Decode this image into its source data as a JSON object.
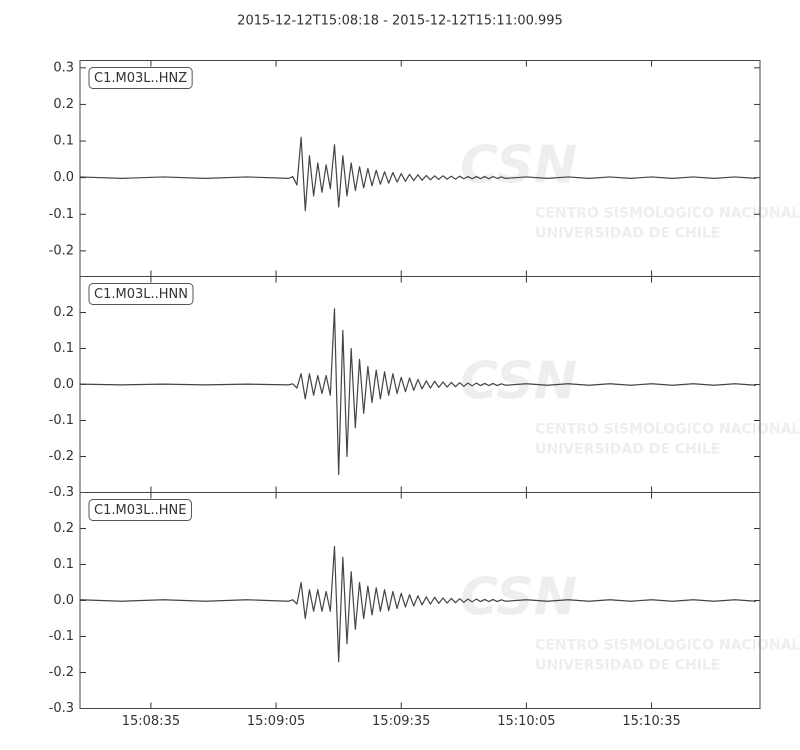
{
  "chart_data": [
    {
      "type": "line",
      "title": "2015-12-12T15:08:18  -  2015-12-12T15:11:00.995",
      "label": "C1.M03L..HNZ",
      "watermark": {
        "logo": "CSN",
        "lines": [
          "CENTRO SISMOLOGICO NACIONAL",
          "UNIVERSIDAD DE CHILE"
        ]
      },
      "xlim": [
        54498,
        54660.995
      ],
      "ylim": [
        -0.27,
        0.32
      ],
      "yticks": [
        -0.2,
        -0.1,
        {
          "value": 0,
          "label": "0.0"
        },
        0.1,
        0.2,
        0.3
      ],
      "x": [
        54498,
        54508,
        54518,
        54528,
        54538,
        54548,
        54549,
        54550,
        54551,
        54552,
        54553,
        54554,
        54555,
        54556,
        54557,
        54558,
        54559,
        54560,
        54561,
        54562,
        54563,
        54564,
        54565,
        54566,
        54567,
        54568,
        54569,
        54570,
        54571,
        54572,
        54573,
        54574,
        54575,
        54576,
        54577,
        54578,
        54579,
        54580,
        54581,
        54582,
        54583,
        54584,
        54585,
        54586,
        54587,
        54588,
        54589,
        54590,
        54591,
        54592,
        54593,
        54594,
        54595,
        54596,
        54597,
        54598,
        54599,
        54600,
        54605,
        54610,
        54615,
        54620,
        54625,
        54630,
        54635,
        54640,
        54645,
        54650,
        54655,
        54660
      ],
      "color": "#444444",
      "values": [
        0.002,
        -0.002,
        0.002,
        -0.002,
        0.002,
        -0.002,
        0.003,
        -0.02,
        0.11,
        -0.09,
        0.06,
        -0.05,
        0.04,
        -0.04,
        0.035,
        -0.03,
        0.09,
        -0.08,
        0.06,
        -0.05,
        0.04,
        -0.035,
        0.03,
        -0.028,
        0.025,
        -0.022,
        0.02,
        -0.018,
        0.016,
        -0.015,
        0.014,
        -0.012,
        0.011,
        -0.01,
        0.009,
        -0.008,
        0.008,
        -0.007,
        0.006,
        -0.006,
        0.005,
        -0.005,
        0.005,
        -0.004,
        0.004,
        -0.004,
        0.004,
        -0.003,
        0.003,
        -0.003,
        0.003,
        -0.003,
        0.003,
        -0.003,
        0.003,
        -0.002,
        0.002,
        -0.002,
        0.002,
        -0.002,
        0.002,
        -0.002,
        0.002,
        -0.002,
        0.002,
        -0.002,
        0.002,
        -0.002,
        0.002,
        -0.002
      ]
    },
    {
      "type": "line",
      "label": "C1.M03L..HNN",
      "watermark": {
        "logo": "CSN",
        "lines": [
          "CENTRO SISMOLOGICO NACIONAL",
          "UNIVERSIDAD DE CHILE"
        ]
      },
      "xlim": [
        54498,
        54660.995
      ],
      "ylim": [
        -0.3,
        0.3
      ],
      "yticks": [
        -0.3,
        -0.2,
        -0.1,
        {
          "value": 0,
          "label": "0.0"
        },
        0.1,
        0.2
      ],
      "x": [
        54498,
        54508,
        54518,
        54528,
        54538,
        54548,
        54549,
        54550,
        54551,
        54552,
        54553,
        54554,
        54555,
        54556,
        54557,
        54558,
        54559,
        54560,
        54561,
        54562,
        54563,
        54564,
        54565,
        54566,
        54567,
        54568,
        54569,
        54570,
        54571,
        54572,
        54573,
        54574,
        54575,
        54576,
        54577,
        54578,
        54579,
        54580,
        54581,
        54582,
        54583,
        54584,
        54585,
        54586,
        54587,
        54588,
        54589,
        54590,
        54591,
        54592,
        54593,
        54594,
        54595,
        54596,
        54597,
        54598,
        54599,
        54600,
        54605,
        54610,
        54615,
        54620,
        54625,
        54630,
        54635,
        54640,
        54645,
        54650,
        54655,
        54660
      ],
      "color": "#444444",
      "values": [
        0.001,
        -0.001,
        0.001,
        -0.001,
        0.001,
        -0.001,
        0.002,
        -0.01,
        0.03,
        -0.04,
        0.03,
        -0.03,
        0.025,
        -0.025,
        0.025,
        -0.03,
        0.21,
        -0.25,
        0.15,
        -0.2,
        0.1,
        -0.12,
        0.07,
        -0.08,
        0.05,
        -0.05,
        0.04,
        -0.04,
        0.035,
        -0.03,
        0.03,
        -0.025,
        0.02,
        -0.02,
        0.018,
        -0.016,
        0.014,
        -0.012,
        0.01,
        -0.01,
        0.009,
        -0.008,
        0.007,
        -0.007,
        0.006,
        -0.006,
        0.005,
        -0.005,
        0.004,
        -0.004,
        0.004,
        -0.003,
        0.003,
        -0.003,
        0.003,
        -0.003,
        0.002,
        -0.002,
        0.002,
        -0.002,
        0.002,
        -0.002,
        0.002,
        -0.002,
        0.002,
        -0.002,
        0.002,
        -0.002,
        0.002,
        -0.002
      ]
    },
    {
      "type": "line",
      "label": "C1.M03L..HNE",
      "watermark": {
        "logo": "CSN",
        "lines": [
          "CENTRO SISMOLOGICO NACIONAL",
          "UNIVERSIDAD DE CHILE"
        ]
      },
      "xlim": [
        54498,
        54660.995
      ],
      "ylim": [
        -0.3,
        0.3
      ],
      "yticks": [
        -0.3,
        -0.2,
        -0.1,
        {
          "value": 0,
          "label": "0.0"
        },
        0.1,
        0.2
      ],
      "xticks": [
        {
          "value": 54515,
          "label": "15:08:35"
        },
        {
          "value": 54545,
          "label": "15:09:05"
        },
        {
          "value": 54575,
          "label": "15:09:35"
        },
        {
          "value": 54605,
          "label": "15:10:05"
        },
        {
          "value": 54635,
          "label": "15:10:35"
        }
      ],
      "x": [
        54498,
        54508,
        54518,
        54528,
        54538,
        54548,
        54549,
        54550,
        54551,
        54552,
        54553,
        54554,
        54555,
        54556,
        54557,
        54558,
        54559,
        54560,
        54561,
        54562,
        54563,
        54564,
        54565,
        54566,
        54567,
        54568,
        54569,
        54570,
        54571,
        54572,
        54573,
        54574,
        54575,
        54576,
        54577,
        54578,
        54579,
        54580,
        54581,
        54582,
        54583,
        54584,
        54585,
        54586,
        54587,
        54588,
        54589,
        54590,
        54591,
        54592,
        54593,
        54594,
        54595,
        54596,
        54597,
        54598,
        54599,
        54600,
        54605,
        54610,
        54615,
        54620,
        54625,
        54630,
        54635,
        54640,
        54645,
        54650,
        54655,
        54660
      ],
      "color": "#444444",
      "values": [
        0.002,
        -0.002,
        0.002,
        -0.002,
        0.002,
        -0.002,
        0.002,
        -0.01,
        0.05,
        -0.05,
        0.03,
        -0.03,
        0.03,
        -0.03,
        0.025,
        -0.03,
        0.15,
        -0.17,
        0.12,
        -0.12,
        0.08,
        -0.08,
        0.05,
        -0.05,
        0.04,
        -0.04,
        0.035,
        -0.03,
        0.03,
        -0.028,
        0.025,
        -0.022,
        0.02,
        -0.018,
        0.016,
        -0.015,
        0.013,
        -0.012,
        0.01,
        -0.01,
        0.009,
        -0.008,
        0.007,
        -0.007,
        0.006,
        -0.006,
        0.005,
        -0.005,
        0.004,
        -0.004,
        0.004,
        -0.003,
        0.003,
        -0.003,
        0.003,
        -0.003,
        0.002,
        -0.002,
        0.002,
        -0.002,
        0.002,
        -0.002,
        0.002,
        -0.002,
        0.002,
        -0.002,
        0.002,
        -0.002,
        0.002,
        -0.002
      ]
    }
  ]
}
